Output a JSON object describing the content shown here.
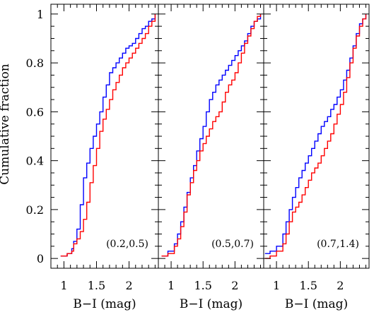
{
  "chart_data": {
    "type": "line",
    "ylabel": "Cumulative fraction",
    "ylim": [
      -0.04,
      1.04
    ],
    "yticks": [
      0,
      0.2,
      0.4,
      0.6,
      0.8,
      1
    ],
    "ytick_labels": [
      "0",
      "0.2",
      "0.4",
      "0.6",
      "0.8",
      "1"
    ],
    "colors": {
      "blue": "#0000ff",
      "red": "#ff0000"
    },
    "panels": [
      {
        "annotation": "(0.2,0.5)",
        "xlabel": "B−I (mag)",
        "xlim": [
          0.8,
          2.45
        ],
        "xticks": [
          1,
          1.5,
          2
        ],
        "xtick_labels": [
          "1",
          "1.5",
          "2"
        ],
        "series": [
          {
            "color": "#0000ff",
            "x": [
              0.95,
              1.05,
              1.12,
              1.15,
              1.2,
              1.25,
              1.3,
              1.35,
              1.4,
              1.45,
              1.5,
              1.55,
              1.6,
              1.65,
              1.7,
              1.75,
              1.8,
              1.85,
              1.9,
              1.95,
              2.0,
              2.05,
              2.1,
              2.15,
              2.2,
              2.25,
              2.3,
              2.35,
              2.4
            ],
            "y": [
              0.01,
              0.02,
              0.04,
              0.07,
              0.12,
              0.22,
              0.33,
              0.39,
              0.45,
              0.5,
              0.55,
              0.6,
              0.66,
              0.71,
              0.76,
              0.78,
              0.8,
              0.82,
              0.84,
              0.86,
              0.87,
              0.88,
              0.9,
              0.92,
              0.94,
              0.95,
              0.97,
              0.98,
              1.0
            ]
          },
          {
            "color": "#ff0000",
            "x": [
              0.95,
              1.05,
              1.12,
              1.15,
              1.2,
              1.25,
              1.3,
              1.35,
              1.4,
              1.45,
              1.5,
              1.55,
              1.6,
              1.65,
              1.7,
              1.75,
              1.8,
              1.85,
              1.9,
              1.95,
              2.0,
              2.05,
              2.1,
              2.15,
              2.2,
              2.25,
              2.3,
              2.35,
              2.4
            ],
            "y": [
              0.01,
              0.02,
              0.03,
              0.06,
              0.08,
              0.11,
              0.16,
              0.23,
              0.31,
              0.38,
              0.45,
              0.52,
              0.57,
              0.61,
              0.65,
              0.69,
              0.72,
              0.75,
              0.78,
              0.8,
              0.82,
              0.84,
              0.86,
              0.88,
              0.9,
              0.92,
              0.95,
              0.97,
              1.0
            ]
          }
        ]
      },
      {
        "annotation": "(0.5,0.7)",
        "xlabel": "B−I (mag)",
        "xlim": [
          0.8,
          2.45
        ],
        "xticks": [
          1,
          1.5,
          2
        ],
        "xtick_labels": [
          "1",
          "1.5",
          "2"
        ],
        "series": [
          {
            "color": "#0000ff",
            "x": [
              0.85,
              0.95,
              1.05,
              1.1,
              1.15,
              1.2,
              1.25,
              1.3,
              1.35,
              1.4,
              1.45,
              1.5,
              1.55,
              1.6,
              1.65,
              1.7,
              1.75,
              1.8,
              1.85,
              1.9,
              1.95,
              2.0,
              2.05,
              2.1,
              2.15,
              2.2,
              2.25,
              2.3,
              2.35,
              2.4
            ],
            "y": [
              0.01,
              0.03,
              0.06,
              0.1,
              0.15,
              0.21,
              0.27,
              0.33,
              0.38,
              0.44,
              0.49,
              0.54,
              0.6,
              0.65,
              0.68,
              0.71,
              0.73,
              0.75,
              0.77,
              0.79,
              0.81,
              0.83,
              0.85,
              0.87,
              0.89,
              0.92,
              0.95,
              0.97,
              0.98,
              1.0
            ]
          },
          {
            "color": "#ff0000",
            "x": [
              0.85,
              0.95,
              1.05,
              1.1,
              1.15,
              1.2,
              1.25,
              1.3,
              1.35,
              1.4,
              1.45,
              1.5,
              1.55,
              1.6,
              1.65,
              1.7,
              1.75,
              1.8,
              1.85,
              1.9,
              1.95,
              2.0,
              2.05,
              2.1,
              2.15,
              2.2,
              2.25,
              2.3,
              2.35,
              2.4
            ],
            "y": [
              0.01,
              0.02,
              0.05,
              0.08,
              0.13,
              0.19,
              0.26,
              0.31,
              0.36,
              0.4,
              0.44,
              0.47,
              0.5,
              0.53,
              0.56,
              0.58,
              0.6,
              0.64,
              0.68,
              0.71,
              0.73,
              0.76,
              0.8,
              0.84,
              0.88,
              0.91,
              0.94,
              0.97,
              0.99,
              1.0
            ]
          }
        ]
      },
      {
        "annotation": "(0.7,1.4)",
        "xlabel": "B−I (mag)",
        "xlim": [
          0.8,
          2.45
        ],
        "xticks": [
          1,
          1.5,
          2
        ],
        "xtick_labels": [
          "1",
          "1.5",
          "2"
        ],
        "series": [
          {
            "color": "#0000ff",
            "x": [
              0.82,
              0.9,
              1.0,
              1.1,
              1.15,
              1.2,
              1.25,
              1.3,
              1.35,
              1.4,
              1.45,
              1.5,
              1.55,
              1.6,
              1.65,
              1.7,
              1.75,
              1.8,
              1.85,
              1.9,
              1.95,
              2.0,
              2.05,
              2.1,
              2.15,
              2.2,
              2.25,
              2.3,
              2.35,
              2.4
            ],
            "y": [
              0.02,
              0.03,
              0.05,
              0.1,
              0.15,
              0.2,
              0.25,
              0.29,
              0.33,
              0.36,
              0.39,
              0.42,
              0.45,
              0.48,
              0.51,
              0.54,
              0.56,
              0.58,
              0.61,
              0.63,
              0.66,
              0.69,
              0.73,
              0.77,
              0.82,
              0.87,
              0.92,
              0.96,
              0.98,
              1.0
            ]
          },
          {
            "color": "#ff0000",
            "x": [
              0.82,
              0.9,
              1.0,
              1.1,
              1.15,
              1.2,
              1.25,
              1.3,
              1.35,
              1.4,
              1.45,
              1.5,
              1.55,
              1.6,
              1.65,
              1.7,
              1.75,
              1.8,
              1.85,
              1.9,
              1.95,
              2.0,
              2.05,
              2.1,
              2.15,
              2.2,
              2.25,
              2.3,
              2.35,
              2.4
            ],
            "y": [
              0.0,
              0.01,
              0.03,
              0.06,
              0.1,
              0.15,
              0.19,
              0.21,
              0.23,
              0.26,
              0.29,
              0.32,
              0.35,
              0.37,
              0.39,
              0.42,
              0.45,
              0.48,
              0.51,
              0.55,
              0.59,
              0.63,
              0.68,
              0.74,
              0.8,
              0.86,
              0.91,
              0.95,
              0.98,
              1.0
            ]
          }
        ]
      }
    ]
  }
}
